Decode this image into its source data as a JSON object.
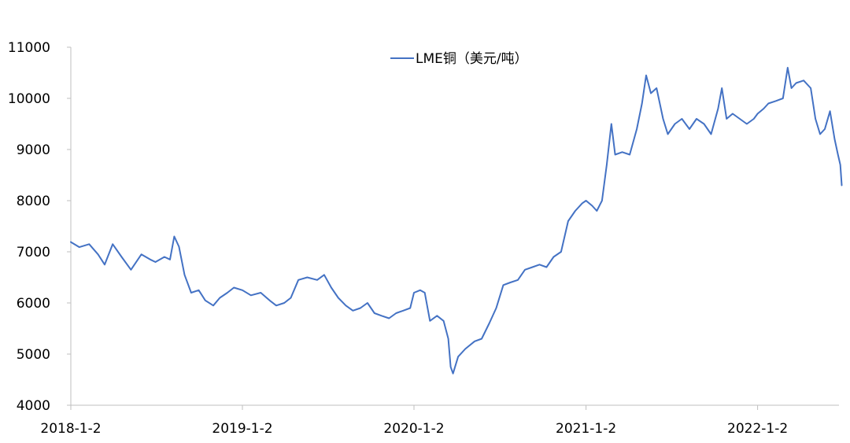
{
  "chart_data": {
    "type": "line",
    "title": "",
    "xlabel": "",
    "ylabel": "",
    "ylim": [
      4000,
      11000
    ],
    "yticks": [
      4000,
      5000,
      6000,
      7000,
      8000,
      9000,
      10000,
      11000
    ],
    "x_tick_labels": [
      "2018-1-2",
      "2019-1-2",
      "2020-1-2",
      "2021-1-2",
      "2022-1-2"
    ],
    "x_range": [
      "2018-1-2",
      "2022-6-30"
    ],
    "legend_position": "top-center",
    "grid": false,
    "colors": {
      "series": "#4472c4",
      "axis": "#bfbfbf"
    },
    "series": [
      {
        "name": "LME铜（美元/吨）",
        "points": [
          [
            "2018-01-02",
            7190
          ],
          [
            "2018-01-20",
            7090
          ],
          [
            "2018-02-10",
            7150
          ],
          [
            "2018-03-01",
            6950
          ],
          [
            "2018-03-15",
            6750
          ],
          [
            "2018-04-01",
            7150
          ],
          [
            "2018-04-20",
            6900
          ],
          [
            "2018-05-10",
            6650
          ],
          [
            "2018-06-01",
            6950
          ],
          [
            "2018-06-20",
            6850
          ],
          [
            "2018-07-01",
            6800
          ],
          [
            "2018-07-20",
            6900
          ],
          [
            "2018-08-01",
            6850
          ],
          [
            "2018-08-10",
            7300
          ],
          [
            "2018-08-20",
            7100
          ],
          [
            "2018-09-01",
            6550
          ],
          [
            "2018-09-15",
            6200
          ],
          [
            "2018-10-01",
            6250
          ],
          [
            "2018-10-15",
            6050
          ],
          [
            "2018-11-01",
            5950
          ],
          [
            "2018-11-15",
            6100
          ],
          [
            "2018-12-01",
            6200
          ],
          [
            "2018-12-15",
            6300
          ],
          [
            "2019-01-02",
            6250
          ],
          [
            "2019-01-20",
            6150
          ],
          [
            "2019-02-10",
            6200
          ],
          [
            "2019-03-01",
            6050
          ],
          [
            "2019-03-15",
            5950
          ],
          [
            "2019-04-01",
            6000
          ],
          [
            "2019-04-15",
            6100
          ],
          [
            "2019-05-01",
            6450
          ],
          [
            "2019-05-20",
            6500
          ],
          [
            "2019-06-10",
            6450
          ],
          [
            "2019-06-25",
            6550
          ],
          [
            "2019-07-10",
            6300
          ],
          [
            "2019-07-25",
            6100
          ],
          [
            "2019-08-10",
            5950
          ],
          [
            "2019-08-25",
            5850
          ],
          [
            "2019-09-10",
            5900
          ],
          [
            "2019-09-25",
            6000
          ],
          [
            "2019-10-10",
            5800
          ],
          [
            "2019-10-25",
            5750
          ],
          [
            "2019-11-10",
            5700
          ],
          [
            "2019-11-25",
            5800
          ],
          [
            "2019-12-10",
            5850
          ],
          [
            "2019-12-25",
            5900
          ],
          [
            "2020-01-02",
            6200
          ],
          [
            "2020-01-15",
            6250
          ],
          [
            "2020-01-25",
            6200
          ],
          [
            "2020-02-05",
            5650
          ],
          [
            "2020-02-20",
            5750
          ],
          [
            "2020-03-05",
            5650
          ],
          [
            "2020-03-15",
            5300
          ],
          [
            "2020-03-20",
            4750
          ],
          [
            "2020-03-25",
            4620
          ],
          [
            "2020-04-05",
            4950
          ],
          [
            "2020-04-20",
            5100
          ],
          [
            "2020-05-10",
            5250
          ],
          [
            "2020-05-25",
            5300
          ],
          [
            "2020-06-10",
            5600
          ],
          [
            "2020-06-25",
            5900
          ],
          [
            "2020-07-10",
            6350
          ],
          [
            "2020-07-25",
            6400
          ],
          [
            "2020-08-10",
            6450
          ],
          [
            "2020-08-25",
            6650
          ],
          [
            "2020-09-10",
            6700
          ],
          [
            "2020-09-25",
            6750
          ],
          [
            "2020-10-10",
            6700
          ],
          [
            "2020-10-25",
            6900
          ],
          [
            "2020-11-10",
            7000
          ],
          [
            "2020-11-25",
            7600
          ],
          [
            "2020-12-10",
            7800
          ],
          [
            "2020-12-25",
            7950
          ],
          [
            "2021-01-02",
            8000
          ],
          [
            "2021-01-15",
            7900
          ],
          [
            "2021-01-25",
            7800
          ],
          [
            "2021-02-05",
            8000
          ],
          [
            "2021-02-15",
            8700
          ],
          [
            "2021-02-25",
            9500
          ],
          [
            "2021-03-05",
            8900
          ],
          [
            "2021-03-20",
            8950
          ],
          [
            "2021-04-05",
            8900
          ],
          [
            "2021-04-20",
            9400
          ],
          [
            "2021-05-01",
            9900
          ],
          [
            "2021-05-10",
            10450
          ],
          [
            "2021-05-20",
            10100
          ],
          [
            "2021-06-01",
            10200
          ],
          [
            "2021-06-15",
            9600
          ],
          [
            "2021-06-25",
            9300
          ],
          [
            "2021-07-10",
            9500
          ],
          [
            "2021-07-25",
            9600
          ],
          [
            "2021-08-10",
            9400
          ],
          [
            "2021-08-25",
            9600
          ],
          [
            "2021-09-10",
            9500
          ],
          [
            "2021-09-25",
            9300
          ],
          [
            "2021-10-10",
            9800
          ],
          [
            "2021-10-18",
            10200
          ],
          [
            "2021-10-28",
            9600
          ],
          [
            "2021-11-10",
            9700
          ],
          [
            "2021-11-25",
            9600
          ],
          [
            "2021-12-10",
            9500
          ],
          [
            "2021-12-25",
            9600
          ],
          [
            "2022-01-02",
            9700
          ],
          [
            "2022-01-15",
            9800
          ],
          [
            "2022-01-25",
            9900
          ],
          [
            "2022-02-10",
            9950
          ],
          [
            "2022-02-25",
            10000
          ],
          [
            "2022-03-07",
            10600
          ],
          [
            "2022-03-15",
            10200
          ],
          [
            "2022-03-25",
            10300
          ],
          [
            "2022-04-10",
            10350
          ],
          [
            "2022-04-25",
            10200
          ],
          [
            "2022-05-05",
            9600
          ],
          [
            "2022-05-15",
            9300
          ],
          [
            "2022-05-25",
            9400
          ],
          [
            "2022-06-05",
            9750
          ],
          [
            "2022-06-15",
            9200
          ],
          [
            "2022-06-22",
            8900
          ],
          [
            "2022-06-27",
            8700
          ],
          [
            "2022-06-30",
            8300
          ]
        ]
      }
    ]
  }
}
